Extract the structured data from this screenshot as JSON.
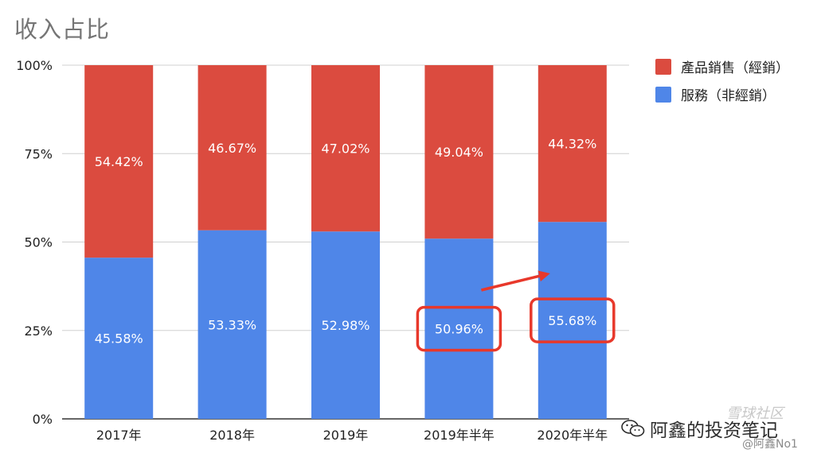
{
  "chart_data": {
    "type": "bar",
    "stacked": true,
    "title": "收入占比",
    "categories": [
      "2017年",
      "2018年",
      "2019年",
      "2019年半年",
      "2020年半年"
    ],
    "series": [
      {
        "name": "服務（非經銷）",
        "color": "#4f86e8",
        "values": [
          45.58,
          53.33,
          52.98,
          50.96,
          55.68
        ],
        "labels": [
          "45.58%",
          "53.33%",
          "52.98%",
          "50.96%",
          "55.68%"
        ]
      },
      {
        "name": "產品銷售（經銷）",
        "color": "#db4b3f",
        "values": [
          54.42,
          46.67,
          47.02,
          49.04,
          44.32
        ],
        "labels": [
          "54.42%",
          "46.67%",
          "47.02%",
          "49.04%",
          "44.32%"
        ]
      }
    ],
    "ylim": [
      0,
      100
    ],
    "yticks": [
      0,
      25,
      50,
      75,
      100
    ],
    "ytick_labels": [
      "0%",
      "25%",
      "50%",
      "75%",
      "100%"
    ],
    "grid": true,
    "legend_position": "right",
    "annotations": {
      "highlight_color": "#e8382b",
      "highlighted_bars": [
        "2019年半年",
        "2020年半年"
      ],
      "arrow": {
        "from": "2019年半年",
        "to": "2020年半年"
      }
    }
  },
  "watermark": {
    "main": "阿鑫的投资笔记",
    "sub": "@阿鑫No1",
    "corner": "雪球社区",
    "icon": "wechat-icon"
  }
}
